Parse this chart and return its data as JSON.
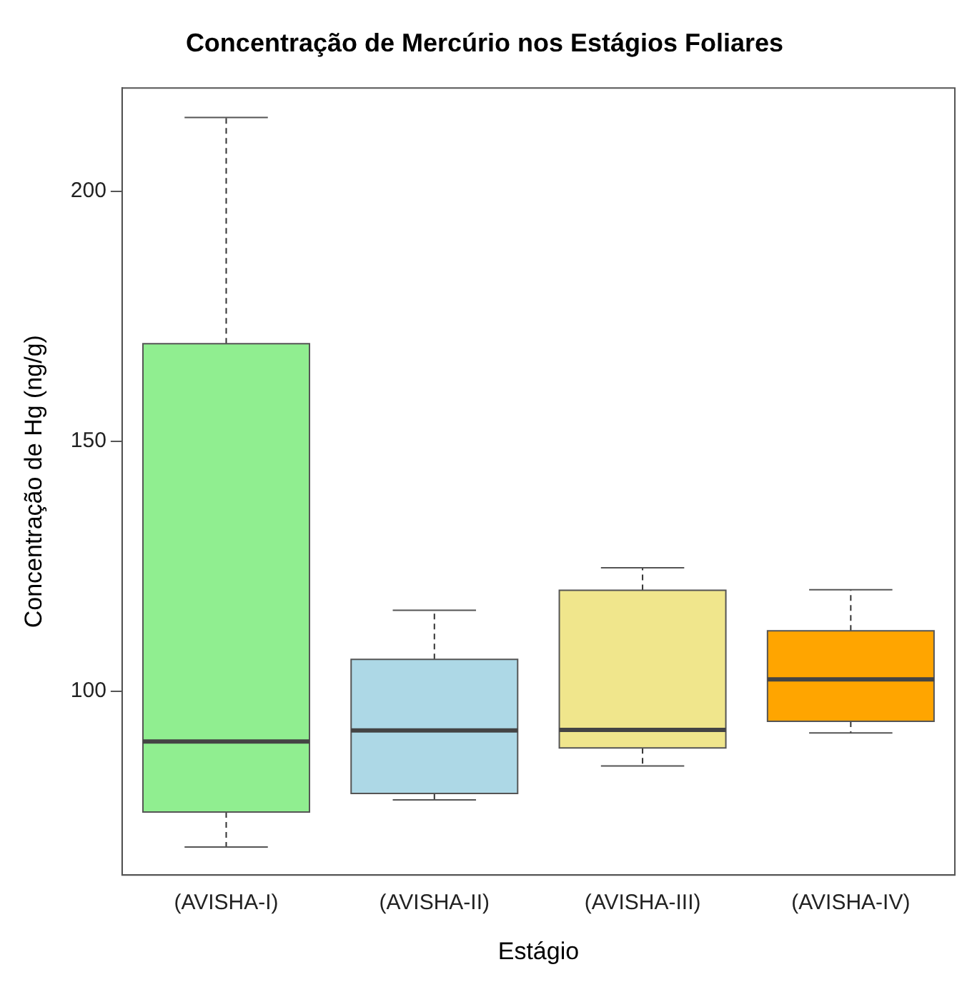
{
  "chart_data": {
    "type": "box",
    "title": "Concentração de Mercúrio nos Estágios Foliares",
    "xlabel": "Estágio",
    "ylabel": "Concentração de Hg (ng/g)",
    "categories": [
      "(AVISHA-I)",
      "(AVISHA-II)",
      "(AVISHA-III)",
      "(AVISHA-IV)"
    ],
    "boxes": [
      {
        "low": 68.9,
        "q1": 75.9,
        "median": 90.0,
        "q3": 169.5,
        "high": 214.7
      },
      {
        "low": 78.3,
        "q1": 79.6,
        "median": 92.2,
        "q3": 106.4,
        "high": 116.2
      },
      {
        "low": 85.1,
        "q1": 88.7,
        "median": 92.3,
        "q3": 120.2,
        "high": 124.7
      },
      {
        "low": 91.7,
        "q1": 94.0,
        "median": 102.4,
        "q3": 112.1,
        "high": 120.3
      }
    ],
    "colors": [
      "#90ee90",
      "#add8e6",
      "#f0e68c",
      "#ffa500"
    ],
    "ylim": [
      63.3,
      220.6
    ],
    "yticks": [
      100,
      150,
      200
    ],
    "grid": false
  }
}
